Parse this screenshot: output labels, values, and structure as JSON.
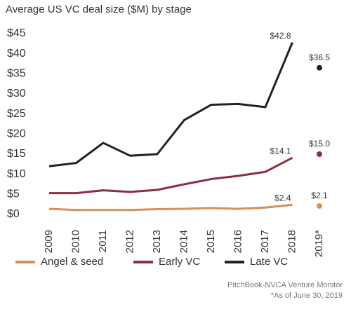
{
  "chart_data": {
    "type": "line",
    "title": "Average US VC deal size ($M) by stage",
    "categories": [
      "2009",
      "2010",
      "2011",
      "2012",
      "2013",
      "2014",
      "2015",
      "2016",
      "2017",
      "2018",
      "2019*"
    ],
    "series": [
      {
        "name": "Angel & seed",
        "color": "#d4915a",
        "values": [
          1.4,
          1.1,
          1.1,
          1.1,
          1.3,
          1.4,
          1.6,
          1.4,
          1.7,
          2.4,
          2.1
        ],
        "value_labels": [
          null,
          null,
          null,
          null,
          null,
          null,
          null,
          null,
          null,
          "$2.4",
          "$2.1"
        ]
      },
      {
        "name": "Early VC",
        "color": "#8b2e3e",
        "values": [
          5.3,
          5.3,
          6.0,
          5.6,
          6.1,
          7.5,
          8.8,
          9.6,
          10.6,
          14.1,
          15.0
        ],
        "value_labels": [
          null,
          null,
          null,
          null,
          null,
          null,
          null,
          null,
          null,
          "$14.1",
          "$15.0"
        ]
      },
      {
        "name": "Late VC",
        "color": "#222222",
        "values": [
          12.0,
          12.8,
          17.8,
          14.6,
          15.0,
          23.5,
          27.3,
          27.5,
          26.7,
          42.8,
          36.5
        ],
        "value_labels": [
          null,
          null,
          null,
          null,
          null,
          null,
          null,
          null,
          null,
          "$42.8",
          "$36.5"
        ]
      }
    ],
    "ylim": [
      0,
      45
    ],
    "yticks": [
      {
        "value": 0,
        "label": "$0"
      },
      {
        "value": 5,
        "label": "$5"
      },
      {
        "value": 10,
        "label": "$10"
      },
      {
        "value": 15,
        "label": "$15"
      },
      {
        "value": 20,
        "label": "$20"
      },
      {
        "value": 25,
        "label": "$25"
      },
      {
        "value": 30,
        "label": "$30"
      },
      {
        "value": 35,
        "label": "$35"
      },
      {
        "value": 40,
        "label": "$40"
      },
      {
        "value": 45,
        "label": "$45"
      }
    ],
    "grid": false,
    "source": "PitchBook-NVCA Venture Monitor",
    "note": "*As of June 30, 2019"
  }
}
